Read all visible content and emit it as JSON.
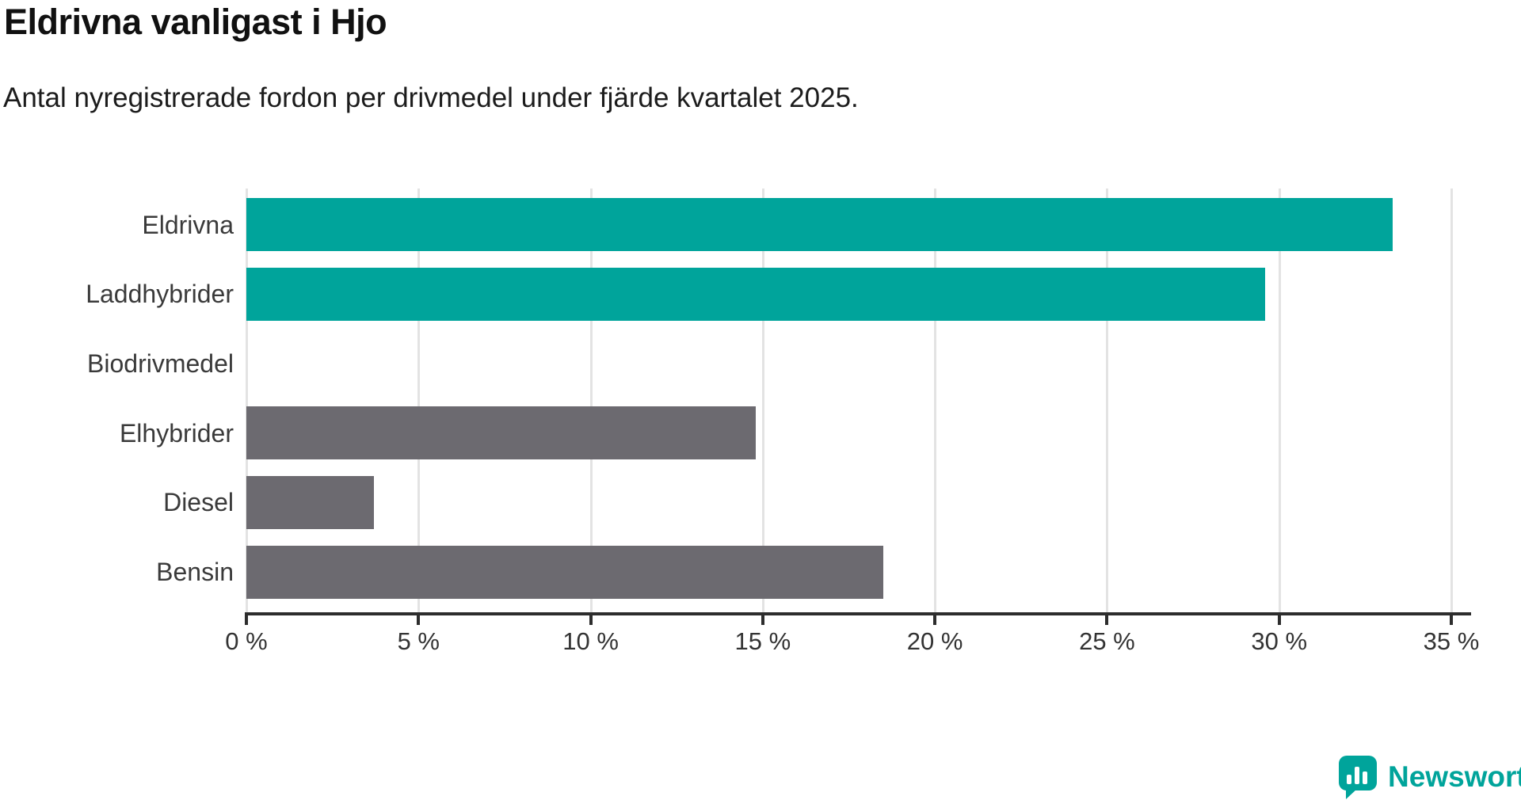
{
  "header": {
    "title": "Eldrivna vanligast i Hjo",
    "subtitle": "Antal nyregistrerade fordon per drivmedel under fjärde kvartalet 2025."
  },
  "chart_data": {
    "type": "bar",
    "orientation": "horizontal",
    "title": "Eldrivna vanligast i Hjo",
    "subtitle": "Antal nyregistrerade fordon per drivmedel under fjärde kvartalet 2025.",
    "categories": [
      "Eldrivna",
      "Laddhybrider",
      "Biodrivmedel",
      "Elhybrider",
      "Diesel",
      "Bensin"
    ],
    "values": [
      33.3,
      29.6,
      0,
      14.8,
      3.7,
      18.5
    ],
    "unit": "%",
    "bar_colors": [
      "#00a49b",
      "#00a49b",
      "#6c6a70",
      "#6c6a70",
      "#6c6a70",
      "#6c6a70"
    ],
    "xlabel": "",
    "ylabel": "",
    "xlim": [
      0,
      35
    ],
    "x_ticks": [
      0,
      5,
      10,
      15,
      20,
      25,
      30,
      35
    ],
    "x_tick_labels": [
      "0 %",
      "5 %",
      "10 %",
      "15 %",
      "20 %",
      "25 %",
      "30 %",
      "35 %"
    ],
    "grid": "vertical",
    "legend": "none"
  },
  "colors": {
    "accent_teal": "#00a49b",
    "bar_gray": "#6c6a70",
    "gridline": "#e3e3e3",
    "axis": "#2d2d2d",
    "title_text": "#111111",
    "label_text": "#3a3a3a"
  },
  "footer": {
    "brand": "Newsworthy"
  }
}
